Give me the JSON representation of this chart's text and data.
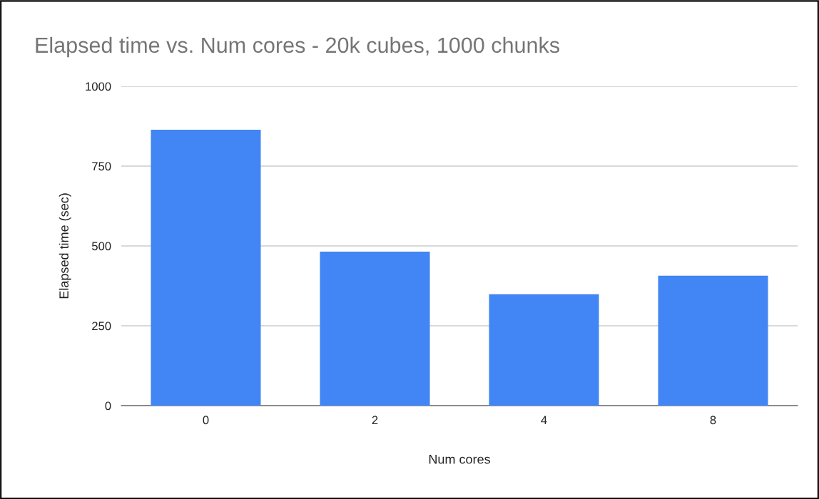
{
  "chart_data": {
    "type": "bar",
    "title": "Elapsed time vs. Num cores - 20k cubes, 1000 chunks",
    "xlabel": "Num cores",
    "ylabel": "Elapsed time (sec)",
    "categories": [
      "0",
      "2",
      "4",
      "8"
    ],
    "values": [
      864,
      482,
      349,
      407
    ],
    "color": "#4285f4",
    "ylim": [
      0,
      1000
    ],
    "yticks": [
      0,
      250,
      500,
      750,
      1000
    ],
    "grid": "y"
  }
}
